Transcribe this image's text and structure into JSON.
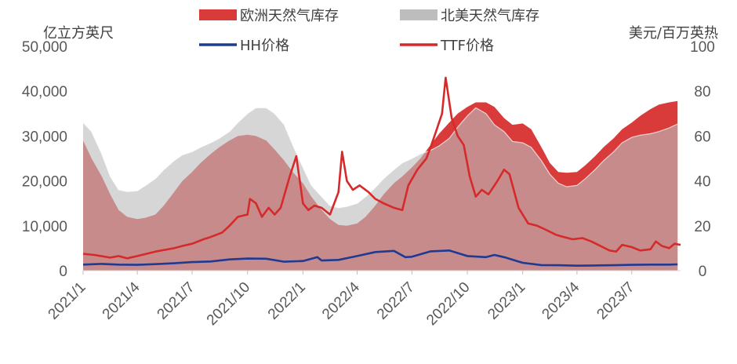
{
  "chart_data": {
    "type": "area",
    "left_axis_unit": "亿立方英尺",
    "right_axis_unit": "美元/百万英热",
    "left_ylim": [
      0,
      50000
    ],
    "right_ylim": [
      0,
      100
    ],
    "left_ticks": [
      "0",
      "10,000",
      "20,000",
      "30,000",
      "40,000",
      "50,000"
    ],
    "right_ticks": [
      "0",
      "20",
      "40",
      "60",
      "80",
      "100"
    ],
    "x_ticks": [
      "2021/1",
      "2021/4",
      "2021/7",
      "2021/10",
      "2022/1",
      "2022/4",
      "2022/7",
      "2022/10",
      "2023/1",
      "2023/4",
      "2023/7"
    ],
    "grid": false,
    "legend_position": "top",
    "colors": {
      "eu_area": "#d93a3a",
      "na_area": "#bdbdbd",
      "hh": "#1f3a93",
      "ttf": "#d62a2a"
    },
    "series": [
      {
        "name": "欧洲天然气库存",
        "kind": "area",
        "axis": "left",
        "points": [
          [
            "2021-01-01",
            29000
          ],
          [
            "2021-01-15",
            25000
          ],
          [
            "2021-02-01",
            21000
          ],
          [
            "2021-02-15",
            17000
          ],
          [
            "2021-03-01",
            13500
          ],
          [
            "2021-03-15",
            12000
          ],
          [
            "2021-04-01",
            11500
          ],
          [
            "2021-04-15",
            11800
          ],
          [
            "2021-05-01",
            12500
          ],
          [
            "2021-05-15",
            14500
          ],
          [
            "2021-06-01",
            17500
          ],
          [
            "2021-06-15",
            20000
          ],
          [
            "2021-07-01",
            22000
          ],
          [
            "2021-07-15",
            24000
          ],
          [
            "2021-08-01",
            26000
          ],
          [
            "2021-08-15",
            27500
          ],
          [
            "2021-09-01",
            29000
          ],
          [
            "2021-09-15",
            30000
          ],
          [
            "2021-10-01",
            30300
          ],
          [
            "2021-10-15",
            30000
          ],
          [
            "2021-11-01",
            29000
          ],
          [
            "2021-11-15",
            27000
          ],
          [
            "2021-12-01",
            24500
          ],
          [
            "2021-12-15",
            22000
          ],
          [
            "2022-01-01",
            19500
          ],
          [
            "2022-01-15",
            16500
          ],
          [
            "2022-02-01",
            13500
          ],
          [
            "2022-02-15",
            11500
          ],
          [
            "2022-03-01",
            10200
          ],
          [
            "2022-03-15",
            10000
          ],
          [
            "2022-04-01",
            10500
          ],
          [
            "2022-04-15",
            12000
          ],
          [
            "2022-05-01",
            14500
          ],
          [
            "2022-05-15",
            17000
          ],
          [
            "2022-06-01",
            19500
          ],
          [
            "2022-06-15",
            21000
          ],
          [
            "2022-07-01",
            23000
          ],
          [
            "2022-07-15",
            25000
          ],
          [
            "2022-08-01",
            28000
          ],
          [
            "2022-08-15",
            30500
          ],
          [
            "2022-09-01",
            33000
          ],
          [
            "2022-09-15",
            35000
          ],
          [
            "2022-10-01",
            36500
          ],
          [
            "2022-10-15",
            37500
          ],
          [
            "2022-11-01",
            37500
          ],
          [
            "2022-11-15",
            36500
          ],
          [
            "2022-12-01",
            34000
          ],
          [
            "2022-12-15",
            32500
          ],
          [
            "2023-01-01",
            32800
          ],
          [
            "2023-01-15",
            31500
          ],
          [
            "2023-02-01",
            27500
          ],
          [
            "2023-02-15",
            24000
          ],
          [
            "2023-03-01",
            22000
          ],
          [
            "2023-03-15",
            21800
          ],
          [
            "2023-04-01",
            22000
          ],
          [
            "2023-04-15",
            23500
          ],
          [
            "2023-05-01",
            25500
          ],
          [
            "2023-05-15",
            27500
          ],
          [
            "2023-06-01",
            29500
          ],
          [
            "2023-06-15",
            31500
          ],
          [
            "2023-07-01",
            33000
          ],
          [
            "2023-07-15",
            34500
          ],
          [
            "2023-08-01",
            36000
          ],
          [
            "2023-08-15",
            37000
          ],
          [
            "2023-09-01",
            37500
          ],
          [
            "2023-09-15",
            37800
          ]
        ]
      },
      {
        "name": "北美天然气库存",
        "kind": "area",
        "axis": "left",
        "points": [
          [
            "2021-01-01",
            33000
          ],
          [
            "2021-01-15",
            31000
          ],
          [
            "2021-02-01",
            26000
          ],
          [
            "2021-02-15",
            21000
          ],
          [
            "2021-03-01",
            18000
          ],
          [
            "2021-03-15",
            17600
          ],
          [
            "2021-04-01",
            17800
          ],
          [
            "2021-04-15",
            19000
          ],
          [
            "2021-05-01",
            20500
          ],
          [
            "2021-05-15",
            22500
          ],
          [
            "2021-06-01",
            24500
          ],
          [
            "2021-06-15",
            25800
          ],
          [
            "2021-07-01",
            26500
          ],
          [
            "2021-07-15",
            27500
          ],
          [
            "2021-08-01",
            28500
          ],
          [
            "2021-08-15",
            29500
          ],
          [
            "2021-09-01",
            31000
          ],
          [
            "2021-09-15",
            33000
          ],
          [
            "2021-10-01",
            35000
          ],
          [
            "2021-10-15",
            36300
          ],
          [
            "2021-11-01",
            36300
          ],
          [
            "2021-11-15",
            35000
          ],
          [
            "2021-12-01",
            32500
          ],
          [
            "2021-12-15",
            28000
          ],
          [
            "2022-01-01",
            23000
          ],
          [
            "2022-01-15",
            19000
          ],
          [
            "2022-02-01",
            16500
          ],
          [
            "2022-02-15",
            14500
          ],
          [
            "2022-03-01",
            14000
          ],
          [
            "2022-03-15",
            14300
          ],
          [
            "2022-04-01",
            15000
          ],
          [
            "2022-04-15",
            16500
          ],
          [
            "2022-05-01",
            18500
          ],
          [
            "2022-05-15",
            20500
          ],
          [
            "2022-06-01",
            22500
          ],
          [
            "2022-06-15",
            24000
          ],
          [
            "2022-07-01",
            25000
          ],
          [
            "2022-07-15",
            26000
          ],
          [
            "2022-08-01",
            26800
          ],
          [
            "2022-08-15",
            27800
          ],
          [
            "2022-09-01",
            29500
          ],
          [
            "2022-09-15",
            32000
          ],
          [
            "2022-10-01",
            34500
          ],
          [
            "2022-10-15",
            36300
          ],
          [
            "2022-11-01",
            35000
          ],
          [
            "2022-11-15",
            32500
          ],
          [
            "2022-12-01",
            31000
          ],
          [
            "2022-12-15",
            28800
          ],
          [
            "2023-01-01",
            28500
          ],
          [
            "2023-01-15",
            27500
          ],
          [
            "2023-02-01",
            24500
          ],
          [
            "2023-02-15",
            21500
          ],
          [
            "2023-03-01",
            19500
          ],
          [
            "2023-03-15",
            18700
          ],
          [
            "2023-04-01",
            19000
          ],
          [
            "2023-04-15",
            20500
          ],
          [
            "2023-05-01",
            22500
          ],
          [
            "2023-05-15",
            24500
          ],
          [
            "2023-06-01",
            26500
          ],
          [
            "2023-06-15",
            28500
          ],
          [
            "2023-07-01",
            29700
          ],
          [
            "2023-07-15",
            30200
          ],
          [
            "2023-08-01",
            30500
          ],
          [
            "2023-08-15",
            31000
          ],
          [
            "2023-09-01",
            31800
          ],
          [
            "2023-09-15",
            32700
          ]
        ]
      },
      {
        "name": "HH价格",
        "kind": "line",
        "axis": "right",
        "points": [
          [
            "2021-01-01",
            2.7
          ],
          [
            "2021-02-01",
            3.0
          ],
          [
            "2021-03-01",
            2.7
          ],
          [
            "2021-04-01",
            2.6
          ],
          [
            "2021-05-01",
            2.9
          ],
          [
            "2021-06-01",
            3.3
          ],
          [
            "2021-07-01",
            3.8
          ],
          [
            "2021-08-01",
            4.1
          ],
          [
            "2021-09-01",
            5.0
          ],
          [
            "2021-10-01",
            5.4
          ],
          [
            "2021-11-01",
            5.3
          ],
          [
            "2021-12-01",
            4.0
          ],
          [
            "2022-01-01",
            4.3
          ],
          [
            "2022-01-25",
            6.0
          ],
          [
            "2022-02-01",
            4.5
          ],
          [
            "2022-03-01",
            4.8
          ],
          [
            "2022-04-01",
            6.5
          ],
          [
            "2022-05-01",
            8.3
          ],
          [
            "2022-06-01",
            8.8
          ],
          [
            "2022-06-20",
            6.0
          ],
          [
            "2022-07-01",
            6.2
          ],
          [
            "2022-08-01",
            8.6
          ],
          [
            "2022-09-01",
            9.0
          ],
          [
            "2022-10-01",
            6.5
          ],
          [
            "2022-11-01",
            6.0
          ],
          [
            "2022-11-15",
            7.0
          ],
          [
            "2022-12-01",
            6.0
          ],
          [
            "2023-01-01",
            3.5
          ],
          [
            "2023-02-01",
            2.5
          ],
          [
            "2023-03-01",
            2.4
          ],
          [
            "2023-04-01",
            2.2
          ],
          [
            "2023-05-01",
            2.3
          ],
          [
            "2023-06-01",
            2.4
          ],
          [
            "2023-07-01",
            2.6
          ],
          [
            "2023-08-01",
            2.7
          ],
          [
            "2023-09-01",
            2.7
          ],
          [
            "2023-09-15",
            2.8
          ]
        ]
      },
      {
        "name": "TTF价格",
        "kind": "line",
        "axis": "right",
        "points": [
          [
            "2021-01-01",
            7.5
          ],
          [
            "2021-01-20",
            7.0
          ],
          [
            "2021-02-15",
            5.8
          ],
          [
            "2021-03-01",
            6.5
          ],
          [
            "2021-03-15",
            5.5
          ],
          [
            "2021-04-01",
            6.5
          ],
          [
            "2021-05-01",
            8.5
          ],
          [
            "2021-06-01",
            10.0
          ],
          [
            "2021-06-15",
            11.0
          ],
          [
            "2021-07-01",
            12.0
          ],
          [
            "2021-07-20",
            14.0
          ],
          [
            "2021-08-01",
            15.0
          ],
          [
            "2021-08-20",
            17.0
          ],
          [
            "2021-09-01",
            20.0
          ],
          [
            "2021-09-15",
            24.0
          ],
          [
            "2021-10-01",
            25.0
          ],
          [
            "2021-10-05",
            32.0
          ],
          [
            "2021-10-15",
            30.0
          ],
          [
            "2021-10-25",
            24.0
          ],
          [
            "2021-11-05",
            28.0
          ],
          [
            "2021-11-15",
            25.0
          ],
          [
            "2021-11-25",
            28.0
          ],
          [
            "2021-12-10",
            42.0
          ],
          [
            "2021-12-21",
            51.0
          ],
          [
            "2022-01-01",
            30.0
          ],
          [
            "2022-01-10",
            27.0
          ],
          [
            "2022-01-20",
            29.0
          ],
          [
            "2022-02-01",
            28.0
          ],
          [
            "2022-02-15",
            25.0
          ],
          [
            "2022-03-01",
            35.0
          ],
          [
            "2022-03-07",
            53.0
          ],
          [
            "2022-03-15",
            40.0
          ],
          [
            "2022-03-25",
            36.0
          ],
          [
            "2022-04-05",
            38.0
          ],
          [
            "2022-04-20",
            35.0
          ],
          [
            "2022-05-01",
            32.0
          ],
          [
            "2022-05-15",
            30.0
          ],
          [
            "2022-06-01",
            28.0
          ],
          [
            "2022-06-15",
            27.0
          ],
          [
            "2022-06-25",
            38.0
          ],
          [
            "2022-07-10",
            45.0
          ],
          [
            "2022-07-25",
            50.0
          ],
          [
            "2022-08-01",
            55.0
          ],
          [
            "2022-08-10",
            62.0
          ],
          [
            "2022-08-20",
            70.0
          ],
          [
            "2022-08-26",
            86.0
          ],
          [
            "2022-09-05",
            68.0
          ],
          [
            "2022-09-15",
            60.0
          ],
          [
            "2022-09-25",
            56.0
          ],
          [
            "2022-10-05",
            42.0
          ],
          [
            "2022-10-15",
            33.0
          ],
          [
            "2022-10-25",
            36.0
          ],
          [
            "2022-11-05",
            34.0
          ],
          [
            "2022-11-20",
            40.0
          ],
          [
            "2022-12-01",
            45.0
          ],
          [
            "2022-12-10",
            43.0
          ],
          [
            "2022-12-25",
            28.0
          ],
          [
            "2023-01-10",
            21.0
          ],
          [
            "2023-01-25",
            20.0
          ],
          [
            "2023-02-10",
            18.0
          ],
          [
            "2023-02-25",
            16.0
          ],
          [
            "2023-03-10",
            15.0
          ],
          [
            "2023-03-25",
            14.0
          ],
          [
            "2023-04-10",
            14.5
          ],
          [
            "2023-04-25",
            13.0
          ],
          [
            "2023-05-10",
            11.0
          ],
          [
            "2023-05-25",
            9.0
          ],
          [
            "2023-06-05",
            8.5
          ],
          [
            "2023-06-15",
            11.5
          ],
          [
            "2023-07-01",
            10.5
          ],
          [
            "2023-07-15",
            9.0
          ],
          [
            "2023-08-01",
            9.5
          ],
          [
            "2023-08-10",
            13.0
          ],
          [
            "2023-08-20",
            11.0
          ],
          [
            "2023-09-01",
            10.0
          ],
          [
            "2023-09-10",
            12.0
          ],
          [
            "2023-09-20",
            11.5
          ]
        ]
      }
    ]
  }
}
